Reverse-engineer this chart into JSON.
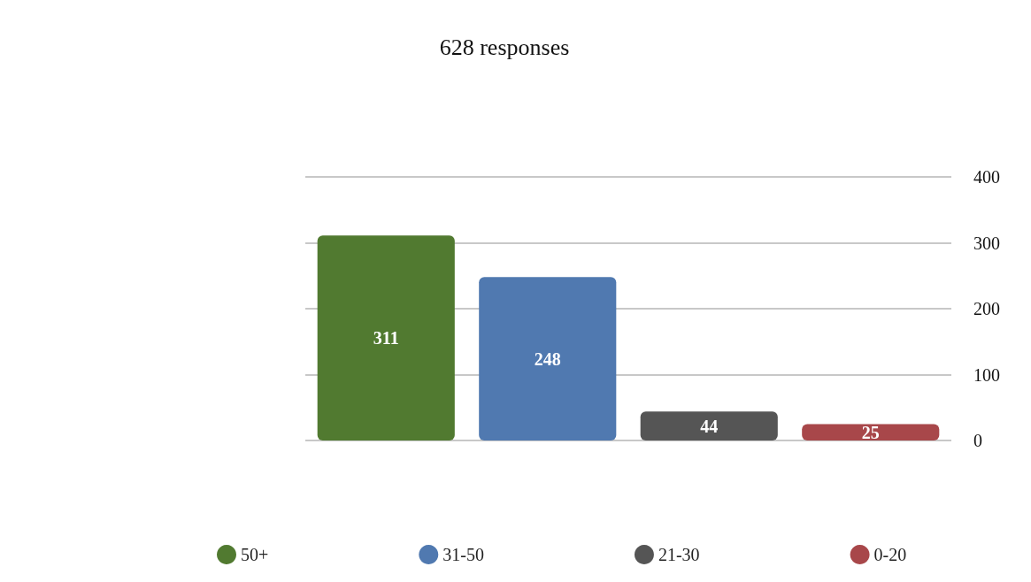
{
  "chart_data": {
    "type": "bar",
    "title": "628 responses",
    "categories": [
      null,
      null,
      null,
      null
    ],
    "series": [
      {
        "name": "50+",
        "color": "#517a30",
        "values": [
          311,
          null,
          null,
          null
        ]
      },
      {
        "name": "31-50",
        "color": "#5079b0",
        "values": [
          null,
          248,
          null,
          null
        ]
      },
      {
        "name": "21-30",
        "color": "#555555",
        "values": [
          null,
          null,
          44,
          null
        ]
      },
      {
        "name": "0-20",
        "color": "#a8474a",
        "values": [
          null,
          null,
          null,
          25
        ]
      }
    ],
    "ylim": [
      0,
      400
    ],
    "yticks": [
      0,
      100,
      200,
      300,
      400
    ],
    "grid": "y",
    "legend": "bottom",
    "data_labels": true,
    "tick_labels": "y"
  }
}
